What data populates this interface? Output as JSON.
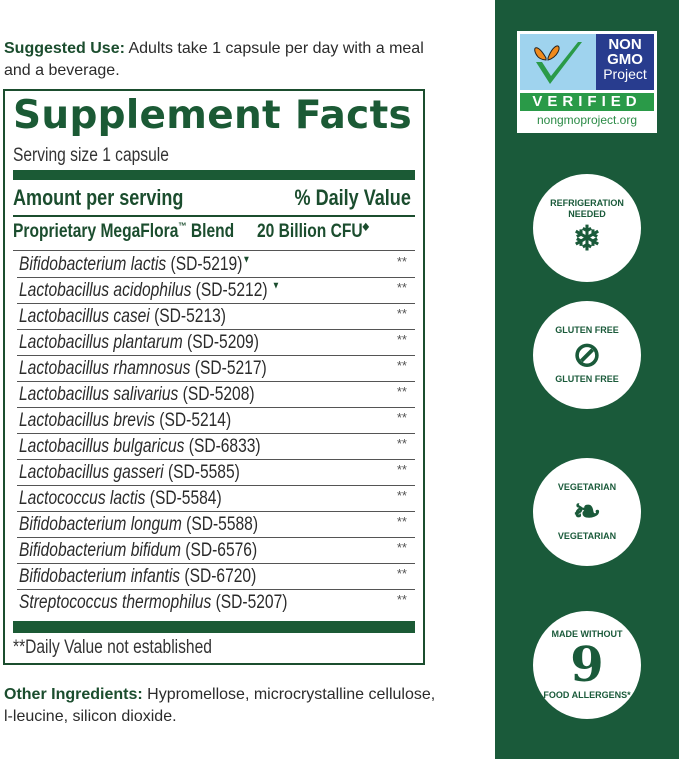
{
  "suggested_use": {
    "label": "Suggested Use:",
    "text": " Adults take 1 capsule per day with a meal and a beverage."
  },
  "facts": {
    "title": "Supplement Facts",
    "serving_size": "Serving size 1 capsule",
    "amount_header": "Amount per serving",
    "dv_header": "% Daily Value",
    "blend_name": "Proprietary MegaFlora",
    "blend_tm": "™",
    "blend_suffix": " Blend",
    "blend_amount": "20 Billion CFU",
    "blend_marker": "◆",
    "rows": [
      {
        "species": "Bifidobacterium lactis",
        "strain": " (SD-5219)",
        "marker": "▼",
        "dv": "**"
      },
      {
        "species": "Lactobacillus acidophilus",
        "strain": " (SD-5212) ",
        "marker": "▼",
        "dv": "**"
      },
      {
        "species": "Lactobacillus casei",
        "strain": " (SD-5213)",
        "marker": "",
        "dv": "**"
      },
      {
        "species": "Lactobacillus plantarum",
        "strain": " (SD-5209)",
        "marker": "",
        "dv": "**"
      },
      {
        "species": "Lactobacillus rhamnosus",
        "strain": " (SD-5217)",
        "marker": "",
        "dv": "**"
      },
      {
        "species": "Lactobacillus salivarius",
        "strain": " (SD-5208)",
        "marker": "",
        "dv": "**"
      },
      {
        "species": "Lactobacillus brevis",
        "strain": " (SD-5214)",
        "marker": "",
        "dv": "**"
      },
      {
        "species": "Lactobacillus bulgaricus",
        "strain": " (SD-6833)",
        "marker": "",
        "dv": "**"
      },
      {
        "species": "Lactobacillus gasseri",
        "strain": " (SD-5585)",
        "marker": "",
        "dv": "**"
      },
      {
        "species": "Lactococcus lactis",
        "strain": " (SD-5584)",
        "marker": "",
        "dv": "**"
      },
      {
        "species": "Bifidobacterium longum",
        "strain": " (SD-5588)",
        "marker": "",
        "dv": "**"
      },
      {
        "species": "Bifidobacterium bifidum",
        "strain": " (SD-6576)",
        "marker": "",
        "dv": "**"
      },
      {
        "species": "Bifidobacterium infantis",
        "strain": " (SD-6720)",
        "marker": "",
        "dv": "**"
      },
      {
        "species": "Streptococcus thermophilus",
        "strain": " (SD-5207)",
        "marker": "",
        "dv": "**"
      }
    ],
    "footnote": "**Daily Value not established"
  },
  "other_ingredients": {
    "label": "Other Ingredients:",
    "text": " Hypromellose, microcrystalline cellulose, l-leucine, silicon dioxide."
  },
  "badges": {
    "non_gmo": {
      "line1": "NON",
      "line2": "GMO",
      "line3": "Project",
      "verified": "VERIFIED",
      "url": "nongmoproject.org",
      "icon": "butterfly-checkmark-icon"
    },
    "refrigeration": {
      "text": "REFRIGERATION NEEDED",
      "icon": "fridge-snowflake-icon"
    },
    "gluten_free": {
      "top": "GLUTEN FREE",
      "bottom": "GLUTEN FREE",
      "icon": "crossed-wheat-icon"
    },
    "vegetarian": {
      "top": "VEGETARIAN",
      "bottom": "VEGETARIAN",
      "icon": "leaf-icon"
    },
    "allergens": {
      "top": "MADE WITHOUT",
      "number": "9",
      "bottom": "FOOD ALLERGENS*"
    }
  },
  "colors": {
    "brand_green": "#1a5a3a",
    "text_green": "#1b4d2e"
  }
}
